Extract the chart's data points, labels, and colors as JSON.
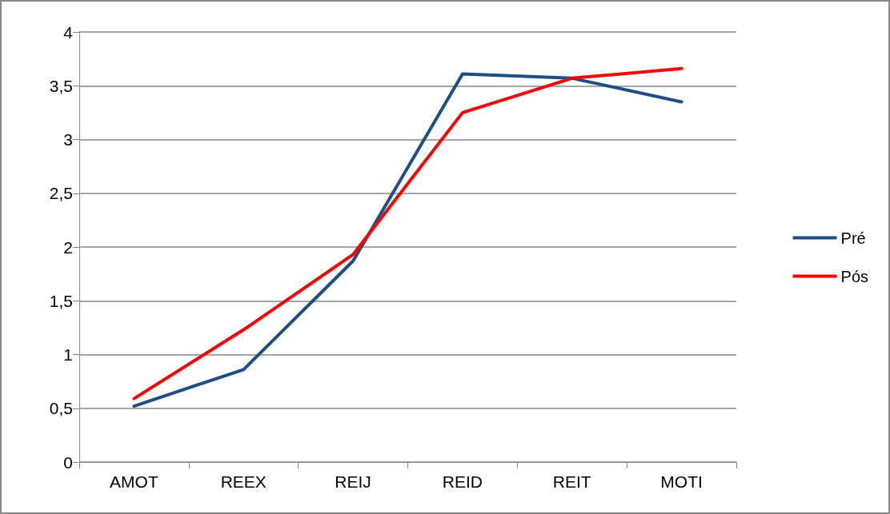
{
  "chart_data": {
    "type": "line",
    "categories": [
      "AMOT",
      "REEX",
      "REIJ",
      "REID",
      "REIT",
      "MOTI"
    ],
    "series": [
      {
        "name": "Pré",
        "color": "#1f4e86",
        "values": [
          0.52,
          0.86,
          1.87,
          3.61,
          3.57,
          3.35
        ]
      },
      {
        "name": "Pós",
        "color": "#ff0000",
        "values": [
          0.59,
          1.23,
          1.93,
          3.25,
          3.57,
          3.66
        ]
      }
    ],
    "ylim": [
      0,
      4
    ],
    "yticks": [
      0,
      {
        "value": 0.5,
        "label": "0,5"
      },
      1,
      {
        "value": 1.5,
        "label": "1,5"
      },
      2,
      {
        "value": 2.5,
        "label": "2,5"
      },
      3,
      {
        "value": 3.5,
        "label": "3,5"
      },
      4
    ],
    "grid": "y",
    "legend": "right",
    "marker": "none",
    "line_style": "solid"
  }
}
